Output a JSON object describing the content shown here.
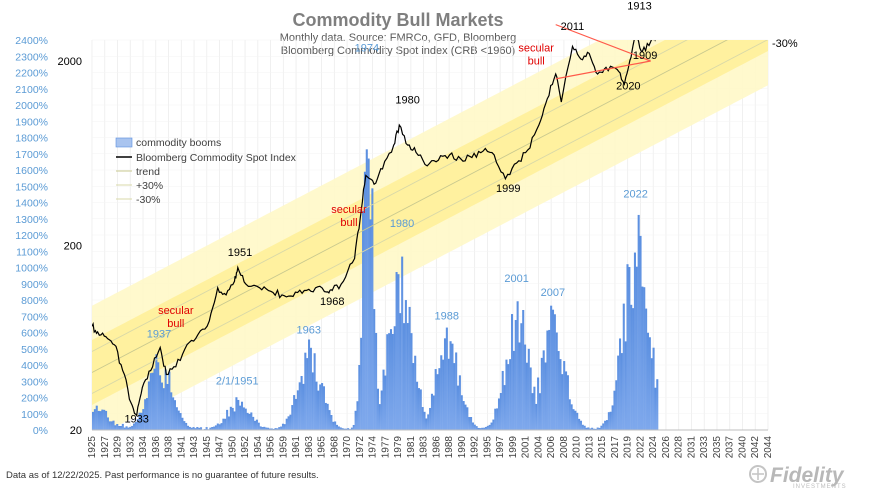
{
  "chart_data": {
    "type": "bar+line",
    "title": "Commodity Bull Markets",
    "subtitle": [
      "Monthly data.  Source: FMRCo, GFD, Bloomberg",
      "Bloomberg Commodity Spot index (CRB <1960)"
    ],
    "x_labels": [
      "1925",
      "1927",
      "1929",
      "1932",
      "1934",
      "1936",
      "1938",
      "1941",
      "1943",
      "1945",
      "1947",
      "1950",
      "1952",
      "1954",
      "1956",
      "1959",
      "1961",
      "1963",
      "1965",
      "1968",
      "1970",
      "1972",
      "1974",
      "1977",
      "1979",
      "1981",
      "1983",
      "1986",
      "1988",
      "1990",
      "1992",
      "1995",
      "1997",
      "1999",
      "2001",
      "2004",
      "2006",
      "2008",
      "2010",
      "2013",
      "2015",
      "2017",
      "2019",
      "2022",
      "2024",
      "2026",
      "2028",
      "2031",
      "2033",
      "2035",
      "2037",
      "2040",
      "2042",
      "2044"
    ],
    "left_axis": {
      "tick_labels": [
        "0%",
        "100%",
        "200%",
        "300%",
        "400%",
        "500%",
        "600%",
        "700%",
        "800%",
        "900%",
        "1000%",
        "1100%",
        "1200%",
        "1300%",
        "1400%",
        "1500%",
        "1600%",
        "1700%",
        "1800%",
        "1900%",
        "2000%",
        "2100%",
        "2200%",
        "2300%",
        "2400%"
      ],
      "range": [
        0,
        2400
      ]
    },
    "right_axis": {
      "scale": "log",
      "tick_labels": [
        "20",
        "200",
        "2000"
      ],
      "range": [
        20,
        2600
      ]
    },
    "series": [
      {
        "name": "commodity booms",
        "kind": "bar",
        "color": "#5b8fe0",
        "peaks": [
          {
            "x": 1925.5,
            "y": 180
          },
          {
            "x": 1937.0,
            "y": 490
          },
          {
            "x": 1951.1,
            "y": 210
          },
          {
            "x": 1963.8,
            "y": 560
          },
          {
            "x": 1974.2,
            "y": 2180
          },
          {
            "x": 1980.0,
            "y": 1120
          },
          {
            "x": 1988.5,
            "y": 640
          },
          {
            "x": 2001.0,
            "y": 870
          },
          {
            "x": 2007.5,
            "y": 790
          },
          {
            "x": 2022.3,
            "y": 1360
          }
        ]
      },
      {
        "name": "Bloomberg Commodity Spot Index",
        "kind": "line",
        "color": "#000000",
        "points": [
          {
            "x": 1925.0,
            "y": 73
          },
          {
            "x": 1926.0,
            "y": 68
          },
          {
            "x": 1927.5,
            "y": 64
          },
          {
            "x": 1929.0,
            "y": 58
          },
          {
            "x": 1930.5,
            "y": 42
          },
          {
            "x": 1932.0,
            "y": 28
          },
          {
            "x": 1933.0,
            "y": 24
          },
          {
            "x": 1934.0,
            "y": 34
          },
          {
            "x": 1935.5,
            "y": 42
          },
          {
            "x": 1937.2,
            "y": 56
          },
          {
            "x": 1938.3,
            "y": 40
          },
          {
            "x": 1940.0,
            "y": 44
          },
          {
            "x": 1942.0,
            "y": 58
          },
          {
            "x": 1944.0,
            "y": 66
          },
          {
            "x": 1946.0,
            "y": 78
          },
          {
            "x": 1947.5,
            "y": 118
          },
          {
            "x": 1949.0,
            "y": 108
          },
          {
            "x": 1950.5,
            "y": 128
          },
          {
            "x": 1951.1,
            "y": 152
          },
          {
            "x": 1952.5,
            "y": 124
          },
          {
            "x": 1955.0,
            "y": 118
          },
          {
            "x": 1957.0,
            "y": 113
          },
          {
            "x": 1959.0,
            "y": 108
          },
          {
            "x": 1961.0,
            "y": 106
          },
          {
            "x": 1963.0,
            "y": 114
          },
          {
            "x": 1965.0,
            "y": 118
          },
          {
            "x": 1967.0,
            "y": 112
          },
          {
            "x": 1968.0,
            "y": 114
          },
          {
            "x": 1970.0,
            "y": 128
          },
          {
            "x": 1972.0,
            "y": 170
          },
          {
            "x": 1973.0,
            "y": 280
          },
          {
            "x": 1974.0,
            "y": 480
          },
          {
            "x": 1975.5,
            "y": 430
          },
          {
            "x": 1977.0,
            "y": 520
          },
          {
            "x": 1979.0,
            "y": 700
          },
          {
            "x": 1980.0,
            "y": 900
          },
          {
            "x": 1981.5,
            "y": 700
          },
          {
            "x": 1983.0,
            "y": 640
          },
          {
            "x": 1985.0,
            "y": 540
          },
          {
            "x": 1987.0,
            "y": 580
          },
          {
            "x": 1989.0,
            "y": 620
          },
          {
            "x": 1991.0,
            "y": 590
          },
          {
            "x": 1993.0,
            "y": 600
          },
          {
            "x": 1995.0,
            "y": 650
          },
          {
            "x": 1997.0,
            "y": 620
          },
          {
            "x": 1999.0,
            "y": 460
          },
          {
            "x": 2001.0,
            "y": 560
          },
          {
            "x": 2003.0,
            "y": 660
          },
          {
            "x": 2005.0,
            "y": 900
          },
          {
            "x": 2006.5,
            "y": 1250
          },
          {
            "x": 2008.0,
            "y": 1700
          },
          {
            "x": 2009.0,
            "y": 1200
          },
          {
            "x": 2011.0,
            "y": 2400
          },
          {
            "x": 2012.5,
            "y": 2050
          },
          {
            "x": 2014.0,
            "y": 2200
          },
          {
            "x": 2015.5,
            "y": 1700
          },
          {
            "x": 2017.0,
            "y": 1850
          },
          {
            "x": 2019.0,
            "y": 1800
          },
          {
            "x": 2020.3,
            "y": 1500
          },
          {
            "x": 2021.5,
            "y": 2100
          },
          {
            "x": 2022.4,
            "y": 2800
          },
          {
            "x": 2023.5,
            "y": 2250
          },
          {
            "x": 2025.0,
            "y": 2550
          },
          {
            "x": 2026.0,
            "y": 2750
          }
        ]
      },
      {
        "name": "trend",
        "kind": "line",
        "color": "#c9c98f"
      },
      {
        "name": "+30%",
        "kind": "line",
        "color": "#d8d8a8"
      },
      {
        "name": "-30%",
        "kind": "line",
        "color": "#d8d8a8"
      }
    ],
    "trend_line": {
      "start": {
        "x": 1925,
        "y": 41
      },
      "end": {
        "x": 2046,
        "y": 3400
      }
    },
    "band_label": "-30%",
    "annotations": {
      "black": [
        {
          "text": "1933",
          "x": 1933.0,
          "y": 22
        },
        {
          "text": "1951",
          "x": 1951.5,
          "y": 175
        },
        {
          "text": "1968",
          "x": 1968.0,
          "y": 95
        },
        {
          "text": "1980",
          "x": 1981.5,
          "y": 1180
        },
        {
          "text": "1999",
          "x": 1999.5,
          "y": 390
        },
        {
          "text": "2011",
          "x": 2011.0,
          "y": 2950
        },
        {
          "text": "2020",
          "x": 2021.0,
          "y": 1400
        },
        {
          "text": "1913",
          "x": 2023.0,
          "y": 3800
        },
        {
          "text": "1909",
          "x": 2024.0,
          "y": 2050
        }
      ],
      "blue": [
        {
          "text": "1937",
          "x": 1937.0,
          "y": 570
        },
        {
          "text": "2/1/1951",
          "x": 1951.0,
          "y": 280
        },
        {
          "text": "1963",
          "x": 1963.8,
          "y": 595
        },
        {
          "text": "1974",
          "x": 1974.2,
          "y": 2330
        },
        {
          "text": "1980",
          "x": 1980.5,
          "y": 1250
        },
        {
          "text": "1988",
          "x": 1988.5,
          "y": 680
        },
        {
          "text": "2001",
          "x": 2001.0,
          "y": 910
        },
        {
          "text": "2007",
          "x": 2007.5,
          "y": 825
        },
        {
          "text": "2022",
          "x": 2022.3,
          "y": 1430
        }
      ],
      "red": [
        {
          "lines": [
            "secular",
            "bull"
          ],
          "x": 1940.0,
          "y": 85
        },
        {
          "lines": [
            "secular",
            "bull"
          ],
          "x": 1971.0,
          "y": 300
        },
        {
          "lines": [
            "secular",
            "bull"
          ],
          "x": 2004.5,
          "y": 2250
        }
      ]
    },
    "triangle": {
      "top": {
        "x": 2008.0,
        "y": 3150
      },
      "bottom": {
        "x": 2008.0,
        "y": 1600
      },
      "apex": {
        "x": 2025.0,
        "y": 2000
      }
    },
    "colors": {
      "bars": "#5b8fe0",
      "index_line": "#000000",
      "band_fill": "#fff4a8",
      "band_center": "#fff4a8",
      "triangle": "#ff5a4a",
      "axis_blue": "#5b9bd5"
    }
  },
  "legend": {
    "items": [
      {
        "label": "commodity booms"
      },
      {
        "label": "Bloomberg Commodity Spot Index"
      },
      {
        "label": "trend"
      },
      {
        "label": "+30%"
      },
      {
        "label": "-30%"
      }
    ]
  },
  "footer": {
    "note": "Data as of 12/22/2025. Past performance is no guarantee of future results.",
    "brand": "Fidelity",
    "brand_sub": "INVESTMENTS"
  }
}
